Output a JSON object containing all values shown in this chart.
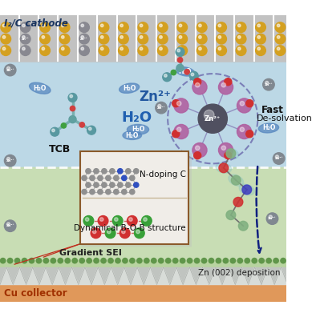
{
  "cathode_label": "I₂/C cathode",
  "collector_label": "Cu collector",
  "zn_deposit_label": "Zn (002) deposition",
  "tcb_label": "TCB",
  "zn2plus_label": "Zn²⁺",
  "h2o_label": "H₂O",
  "fast_label": "Fast",
  "desolvation_label": "De-solvation",
  "ndoping_label": "N-doping C",
  "bob_label": "Dynamical B-O-B structure",
  "sei_label": "Gradient SEI",
  "bg_gray": "#c2c2c2",
  "bg_blue_green": "#b8d8e4",
  "bg_green": "#c8ddb8",
  "bg_green2": "#d0e4c0",
  "bg_collector": "#e8a870",
  "bg_zn_strip": "#c8ccc8",
  "gold": "#d4a020",
  "gray_sphere": "#888890",
  "inset_bg_top": "#f0eeea",
  "inset_bg_bot": "#f8f0e0",
  "h2o_blue": "#6098c8",
  "tcb_teal": "#70b0b0",
  "sei_green": "#70a050"
}
